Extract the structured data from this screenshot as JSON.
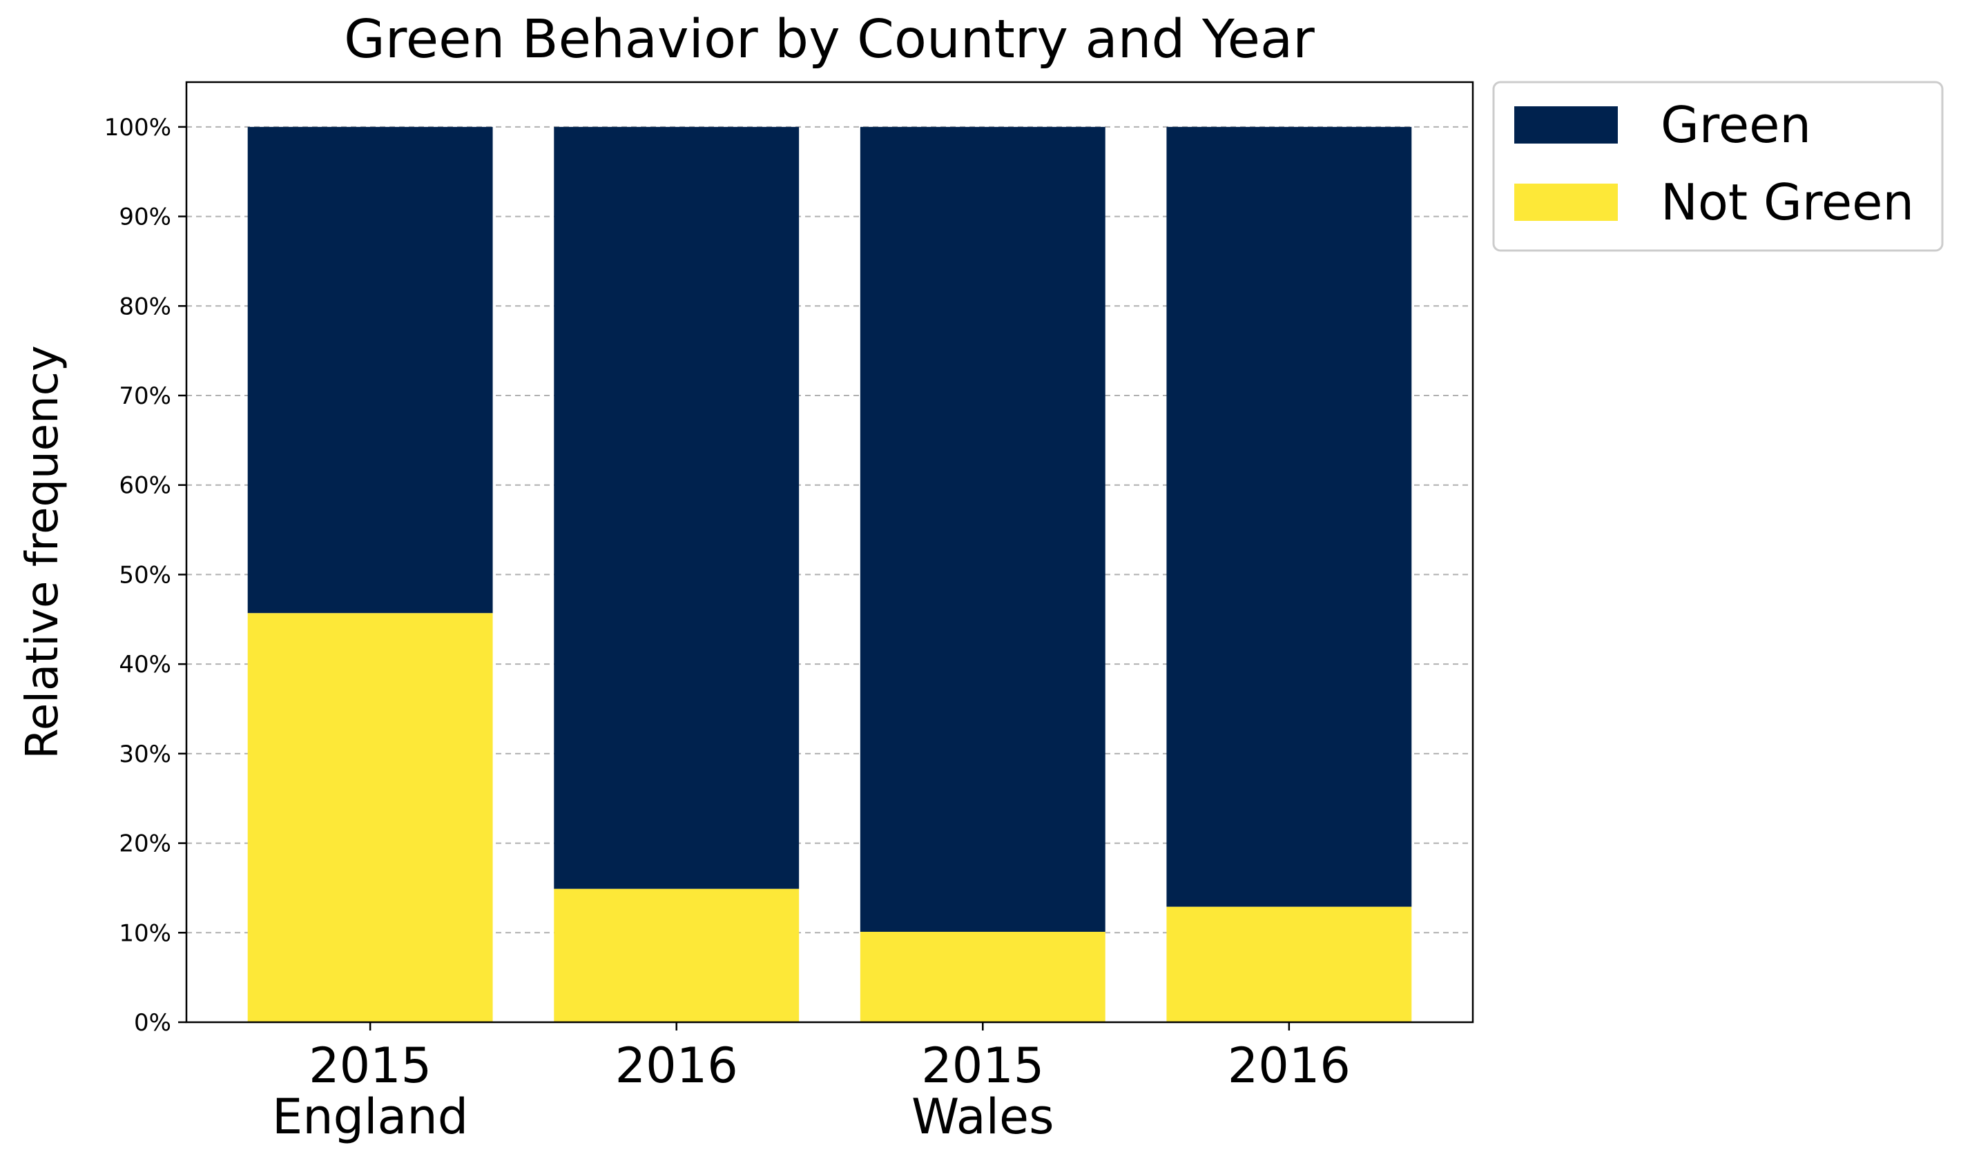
{
  "chart_data": {
    "type": "bar",
    "stacked": true,
    "title": "Green Behavior by Country and Year",
    "xlabel": "",
    "ylabel": "Relative frequency",
    "ylim": [
      0,
      105
    ],
    "y_ticks": [
      "0%",
      "10%",
      "20%",
      "30%",
      "40%",
      "50%",
      "60%",
      "70%",
      "80%",
      "90%",
      "100%"
    ],
    "y_tick_values": [
      0,
      10,
      20,
      30,
      40,
      50,
      60,
      70,
      80,
      90,
      100
    ],
    "grid": "horizontal dashed",
    "legend_position": "outside top-right",
    "categories": [
      "2015",
      "2016",
      "2015",
      "2016"
    ],
    "groups": [
      {
        "label": "England",
        "category_indices": [
          0,
          1
        ]
      },
      {
        "label": "Wales",
        "category_indices": [
          2,
          3
        ]
      }
    ],
    "series": [
      {
        "name": "Not Green",
        "color": "#fde838",
        "values": [
          45.7,
          14.9,
          10.1,
          12.9
        ]
      },
      {
        "name": "Green",
        "color": "#00224e",
        "values": [
          54.3,
          85.1,
          89.9,
          87.1
        ]
      }
    ],
    "legend_order": [
      "Green",
      "Not Green"
    ]
  }
}
